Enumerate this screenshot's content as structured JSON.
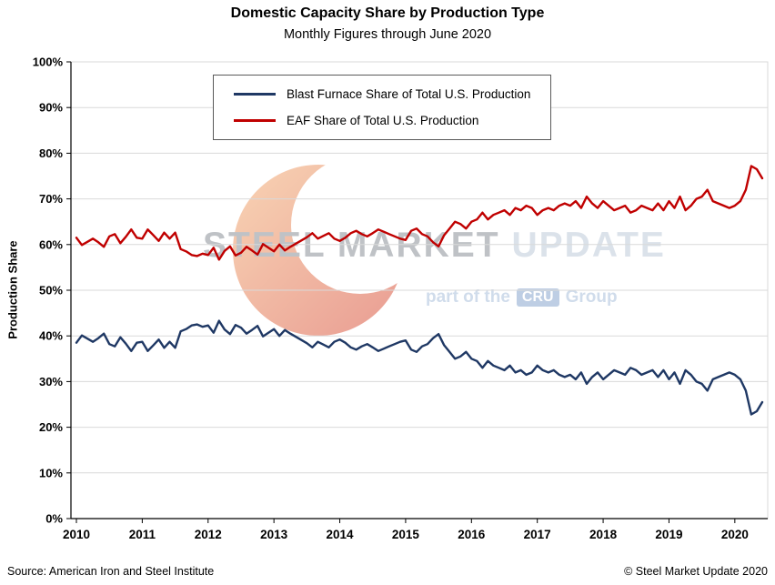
{
  "footer": {
    "source": "Source: American Iron and Steel Institute",
    "copyright": "© Steel Market Update 2020"
  },
  "watermark": {
    "brand_gray": "STEEL MARKET",
    "brand_light": "UPDATE",
    "tagline_prefix": "part of the",
    "tagline_box": "CRU",
    "tagline_suffix": "Group"
  },
  "chart_data": {
    "type": "line",
    "title": "Domestic Capacity Share by Production Type",
    "subtitle": "Monthly Figures through June 2020",
    "ylabel": "Production Share",
    "ylim": [
      0,
      100
    ],
    "ytick": 10,
    "ytick_suffix": "%",
    "grid": true,
    "legend_position": "top-center",
    "x_unit": "month",
    "x_start": "2010-01",
    "x_end": "2020-06",
    "x_labels": [
      "2010",
      "2011",
      "2012",
      "2013",
      "2014",
      "2015",
      "2016",
      "2017",
      "2018",
      "2019",
      "2020"
    ],
    "series": [
      {
        "name": "Blast Furnace Share of Total U.S. Production",
        "color": "#1f3864",
        "values": [
          38.5,
          40.1,
          39.4,
          38.7,
          39.5,
          40.5,
          38.2,
          37.7,
          39.7,
          38.3,
          36.7,
          38.5,
          38.7,
          36.7,
          37.9,
          39.2,
          37.4,
          38.7,
          37.4,
          41.0,
          41.5,
          42.3,
          42.5,
          42.0,
          42.3,
          40.7,
          43.3,
          41.4,
          40.4,
          42.4,
          41.8,
          40.5,
          41.3,
          42.2,
          39.9,
          40.7,
          41.5,
          40.0,
          41.3,
          40.5,
          39.8,
          39.1,
          38.4,
          37.5,
          38.7,
          38.1,
          37.5,
          38.7,
          39.2,
          38.5,
          37.5,
          37.0,
          37.7,
          38.2,
          37.5,
          36.7,
          37.2,
          37.7,
          38.2,
          38.7,
          39.0,
          37.0,
          36.5,
          37.7,
          38.2,
          39.5,
          40.4,
          38.0,
          36.5,
          35.0,
          35.5,
          36.5,
          35.0,
          34.5,
          33.0,
          34.5,
          33.5,
          33.0,
          32.5,
          33.5,
          32.0,
          32.5,
          31.5,
          32.0,
          33.5,
          32.5,
          32.0,
          32.5,
          31.5,
          31.0,
          31.5,
          30.5,
          32.0,
          29.5,
          31.0,
          32.0,
          30.5,
          31.5,
          32.5,
          32.0,
          31.5,
          33.0,
          32.5,
          31.5,
          32.0,
          32.5,
          31.0,
          32.5,
          30.5,
          32.0,
          29.5,
          32.5,
          31.5,
          30.0,
          29.5,
          28.0,
          30.5,
          31.0,
          31.5,
          32.0,
          31.5,
          30.5,
          28.0,
          22.8,
          23.5,
          25.5
        ]
      },
      {
        "name": "EAF Share of Total U.S. Production",
        "color": "#c00000",
        "values": [
          61.5,
          59.9,
          60.6,
          61.3,
          60.5,
          59.5,
          61.8,
          62.3,
          60.3,
          61.7,
          63.3,
          61.5,
          61.3,
          63.3,
          62.1,
          60.8,
          62.6,
          61.3,
          62.6,
          59.0,
          58.5,
          57.7,
          57.5,
          58.0,
          57.7,
          59.3,
          56.7,
          58.6,
          59.6,
          57.6,
          58.2,
          59.5,
          58.7,
          57.8,
          60.1,
          59.3,
          58.5,
          60.0,
          58.7,
          59.5,
          60.2,
          60.9,
          61.6,
          62.5,
          61.3,
          61.9,
          62.5,
          61.3,
          60.8,
          61.5,
          62.5,
          63.0,
          62.3,
          61.8,
          62.5,
          63.3,
          62.8,
          62.3,
          61.8,
          61.3,
          61.0,
          63.0,
          63.5,
          62.3,
          61.8,
          60.5,
          59.6,
          62.0,
          63.5,
          65.0,
          64.5,
          63.5,
          65.0,
          65.5,
          67.0,
          65.5,
          66.5,
          67.0,
          67.5,
          66.5,
          68.0,
          67.5,
          68.5,
          68.0,
          66.5,
          67.5,
          68.0,
          67.5,
          68.5,
          69.0,
          68.5,
          69.5,
          68.0,
          70.5,
          69.0,
          68.0,
          69.5,
          68.5,
          67.5,
          68.0,
          68.5,
          67.0,
          67.5,
          68.5,
          68.0,
          67.5,
          69.0,
          67.5,
          69.5,
          68.0,
          70.5,
          67.5,
          68.5,
          70.0,
          70.5,
          72.0,
          69.5,
          69.0,
          68.5,
          68.0,
          68.5,
          69.5,
          72.0,
          77.2,
          76.5,
          74.5
        ]
      }
    ]
  }
}
